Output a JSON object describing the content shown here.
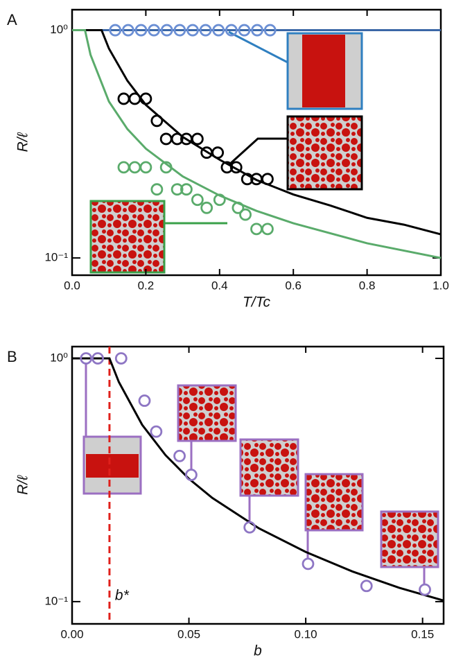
{
  "chart_data": [
    {
      "type": "line",
      "panel_label": "A",
      "x_label": "T/Tc",
      "y_label": "R/ℓ",
      "yscale": "log",
      "xlim": [
        0,
        1
      ],
      "ylim": [
        0.084,
        1.23
      ],
      "xticks": [
        {
          "value": 0,
          "label": "0.0"
        },
        0.2,
        0.4,
        0.6,
        0.8,
        {
          "value": 1,
          "label": "1.0"
        }
      ],
      "yticks": [
        {
          "value": 0.1,
          "label": "10⁻¹"
        },
        {
          "value": 1,
          "label": "10⁰"
        }
      ],
      "series": [
        {
          "style": "line",
          "color": "#3b67a6",
          "x": [
            0,
            1
          ],
          "values": [
            1,
            1
          ]
        },
        {
          "style": "markers",
          "color": "#6b8fd4",
          "x": [
            0.117,
            0.152,
            0.187,
            0.222,
            0.257,
            0.292,
            0.327,
            0.362,
            0.397,
            0.432,
            0.467,
            0.502,
            0.537
          ],
          "values": [
            1,
            1,
            1,
            1,
            1,
            1,
            1,
            1,
            1,
            1,
            1,
            1,
            1
          ]
        },
        {
          "style": "line",
          "color": "#000000",
          "x": [
            0,
            0.08,
            0.1,
            0.15,
            0.2,
            0.3,
            0.4,
            0.5,
            0.6,
            0.7,
            0.8,
            0.9,
            1
          ],
          "values": [
            1,
            1,
            0.83,
            0.6,
            0.47,
            0.34,
            0.27,
            0.22,
            0.19,
            0.17,
            0.15,
            0.14,
            0.127
          ]
        },
        {
          "style": "markers",
          "color": "#000000",
          "x": [
            0.14,
            0.17,
            0.2,
            0.23,
            0.255,
            0.285,
            0.31,
            0.34,
            0.365,
            0.395,
            0.42,
            0.445,
            0.475,
            0.5,
            0.53
          ],
          "values": [
            0.5,
            0.5,
            0.5,
            0.4,
            0.333,
            0.333,
            0.333,
            0.333,
            0.29,
            0.29,
            0.25,
            0.25,
            0.222,
            0.222,
            0.222
          ]
        },
        {
          "style": "line",
          "color": "#5aab6b",
          "x": [
            0,
            0.035,
            0.05,
            0.1,
            0.15,
            0.2,
            0.3,
            0.4,
            0.5,
            0.6,
            0.8,
            1
          ],
          "values": [
            1,
            1,
            0.78,
            0.486,
            0.368,
            0.302,
            0.228,
            0.188,
            0.161,
            0.142,
            0.116,
            0.1
          ]
        },
        {
          "style": "markers",
          "color": "#5aab6b",
          "x": [
            0.14,
            0.17,
            0.2,
            0.255,
            0.23,
            0.285,
            0.31,
            0.34,
            0.365,
            0.4,
            0.45,
            0.47,
            0.5,
            0.53
          ],
          "values": [
            0.25,
            0.25,
            0.25,
            0.25,
            0.2,
            0.2,
            0.2,
            0.18,
            0.166,
            0.18,
            0.166,
            0.155,
            0.134,
            0.134
          ]
        }
      ]
    },
    {
      "type": "line",
      "panel_label": "B",
      "x_label": "b",
      "y_label": "R/ℓ",
      "yscale": "log",
      "xlim": [
        0,
        0.159
      ],
      "ylim": [
        0.081,
        1.118
      ],
      "xticks": [
        {
          "value": 0,
          "label": "0.00"
        },
        0.05,
        {
          "value": 0.1,
          "label": "0.10"
        },
        0.15
      ],
      "yticks": [
        {
          "value": 0.1,
          "label": "10⁻¹"
        },
        {
          "value": 1,
          "label": "10⁰"
        }
      ],
      "threshold": {
        "value": 0.016,
        "label": "b*",
        "color": "#e0201b"
      },
      "series": [
        {
          "style": "line",
          "color": "#000000",
          "x": [
            0,
            0.016,
            0.02,
            0.03,
            0.04,
            0.05,
            0.06,
            0.08,
            0.1,
            0.12,
            0.14,
            0.159
          ],
          "values": [
            1,
            1,
            0.8,
            0.533,
            0.4,
            0.32,
            0.267,
            0.2,
            0.16,
            0.133,
            0.114,
            0.101
          ]
        },
        {
          "style": "markers",
          "color": "#8e76c4",
          "x": [
            0.006,
            0.011,
            0.021,
            0.031,
            0.036,
            0.046,
            0.051,
            0.076,
            0.101,
            0.126,
            0.151
          ],
          "values": [
            1,
            1,
            1,
            0.67,
            0.5,
            0.397,
            0.332,
            0.202,
            0.143,
            0.116,
            0.112
          ]
        }
      ]
    }
  ]
}
